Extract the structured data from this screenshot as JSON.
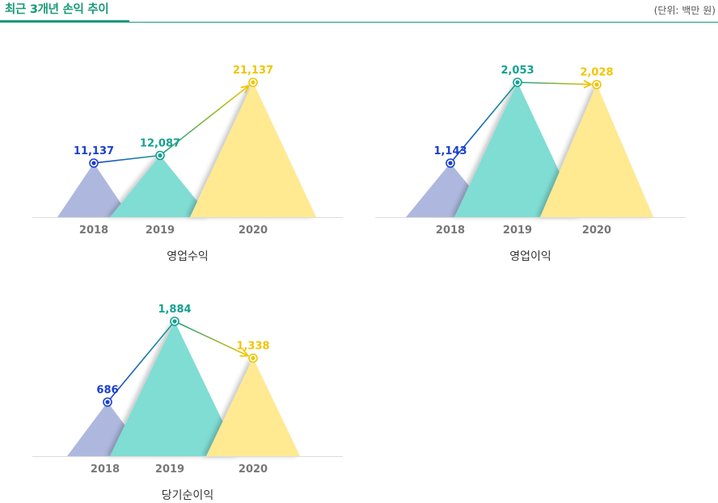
{
  "header": {
    "title": "최근 3개년 손익 추이",
    "unit": "(단위: 백만 원)"
  },
  "colors": {
    "accent": "#1a9a78",
    "series_2018_fill": "#aeb8de",
    "series_2019_fill": "#7fddd4",
    "series_2020_fill": "#ffe991",
    "series_2018_line": "#1b3fd1",
    "series_2019_line": "#13a190",
    "series_2020_line": "#f2c500"
  },
  "chart_data": [
    {
      "type": "area",
      "title": "영업수익",
      "categories": [
        "2018",
        "2019",
        "2020"
      ],
      "values": [
        11137,
        12087,
        21137
      ],
      "labels": [
        "11,137",
        "12,087",
        "21,137"
      ]
    },
    {
      "type": "area",
      "title": "영업이익",
      "categories": [
        "2018",
        "2019",
        "2020"
      ],
      "values": [
        1143,
        2053,
        2028
      ],
      "labels": [
        "1,143",
        "2,053",
        "2,028"
      ]
    },
    {
      "type": "area",
      "title": "당기순이익",
      "categories": [
        "2018",
        "2019",
        "2020"
      ],
      "values": [
        686,
        1884,
        1338
      ],
      "labels": [
        "686",
        "1,884",
        "1,338"
      ]
    }
  ]
}
